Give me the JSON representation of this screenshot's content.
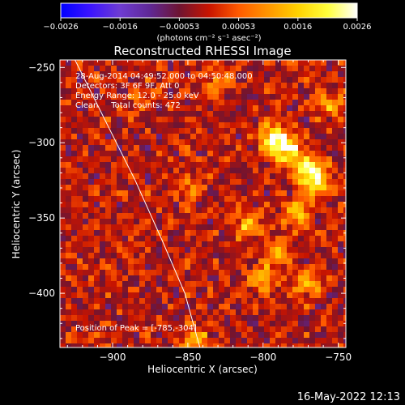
{
  "colorbar": {
    "ticks": [
      "−0.0026",
      "−0.0016",
      "−0.00053",
      "0.00053",
      "0.0016",
      "0.0026"
    ],
    "unit_label": "(photons cm⁻² s⁻¹ asec⁻²)",
    "stops": [
      "#0000ff",
      "#3c14ff",
      "#6e3cd2",
      "#5f2896",
      "#6e1432",
      "#c81400",
      "#ff5a00",
      "#ff9600",
      "#ffd200",
      "#ffff3c",
      "#ffffff"
    ]
  },
  "chart_data": {
    "type": "heatmap",
    "title": "Reconstructed RHESSI Image",
    "xlabel": "Heliocentric X (arcsec)",
    "ylabel": "Heliocentric Y (arcsec)",
    "xlim": [
      -935,
      -745
    ],
    "ylim": [
      -436,
      -245
    ],
    "xticks": [
      -900,
      -850,
      -800,
      -750
    ],
    "yticks": [
      -250,
      -300,
      -350,
      -400
    ],
    "xtick_labels": [
      "−900",
      "−850",
      "−800",
      "−750"
    ],
    "ytick_labels": [
      "−250",
      "−300",
      "−350",
      "−400"
    ],
    "colorbar_range": [
      -0.0026,
      0.0026
    ],
    "annotations": [
      "28-Aug-2014 04:49:52.000 to 04:50:48.000",
      "Detectors: 3F 6F 9F, Att 0",
      "Energy Range: 12.0 - 25.0 keV",
      "Clean     Total counts: 472",
      "Position of Peak = [-785,-304]"
    ],
    "peak_position": [
      -785,
      -304
    ],
    "limb_points": [
      [
        -925,
        -245
      ],
      [
        -905,
        -285
      ],
      [
        -885,
        -325
      ],
      [
        -867,
        -365
      ],
      [
        -852,
        -400
      ],
      [
        -842,
        -436
      ]
    ],
    "hotspots": [
      {
        "x": -785,
        "y": -304,
        "value": 0.0026
      },
      {
        "x": -771,
        "y": -318,
        "value": 0.0022
      },
      {
        "x": -794,
        "y": -296,
        "value": 0.0018
      },
      {
        "x": -764,
        "y": -326,
        "value": 0.0018
      },
      {
        "x": -778,
        "y": -346,
        "value": 0.0015
      },
      {
        "x": -810,
        "y": -355,
        "value": 0.0014
      },
      {
        "x": -790,
        "y": -372,
        "value": 0.0013
      },
      {
        "x": -770,
        "y": -395,
        "value": 0.0012
      },
      {
        "x": -800,
        "y": -390,
        "value": 0.0011
      },
      {
        "x": -845,
        "y": -430,
        "value": 0.0012
      },
      {
        "x": -755,
        "y": -275,
        "value": 0.0011
      },
      {
        "x": -830,
        "y": -260,
        "value": 0.0009
      },
      {
        "x": -850,
        "y": -330,
        "value": 0.0008
      },
      {
        "x": -880,
        "y": -270,
        "value": 0.0007
      }
    ]
  },
  "footer": {
    "timestamp": "16-May-2022 12:13"
  }
}
